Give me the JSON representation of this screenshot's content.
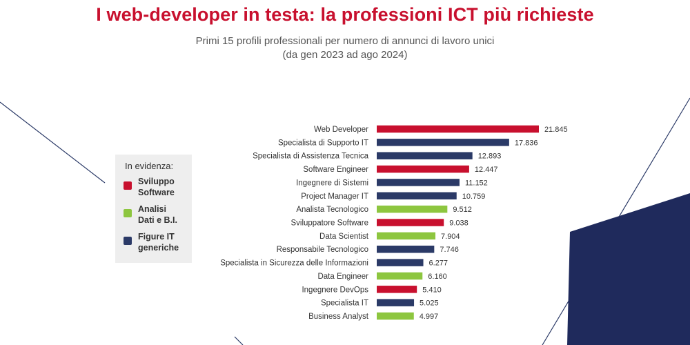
{
  "title": "I web-developer in testa: la professioni ICT più richieste",
  "subtitle_line1": "Primi 15 profili professionali per numero di annunci di lavoro unici",
  "subtitle_line2": "(da gen 2023 ad ago 2024)",
  "legend": {
    "title": "In evidenza:",
    "items": [
      {
        "label": "Sviluppo\nSoftware",
        "color": "#c8102e"
      },
      {
        "label": "Analisi\nDati e B.I.",
        "color": "#8dc63f"
      },
      {
        "label": "Figure IT\ngeneriche",
        "color": "#2b3a67"
      }
    ]
  },
  "chart_data": {
    "type": "bar",
    "orientation": "horizontal",
    "categories": [
      "Web Developer",
      "Specialista di Supporto IT",
      "Specialista di Assistenza Tecnica",
      "Software Engineer",
      "Ingegnere di Sistemi",
      "Project Manager IT",
      "Analista Tecnologico",
      "Sviluppatore Software",
      "Data Scientist",
      "Responsabile Tecnologico",
      "Specialista in Sicurezza delle Informazioni",
      "Data Engineer",
      "Ingegnere DevOps",
      "Specialista IT",
      "Business Analyst"
    ],
    "values": [
      21845,
      17836,
      12893,
      12447,
      11152,
      10759,
      9512,
      9038,
      7904,
      7746,
      6277,
      6160,
      5410,
      5025,
      4997
    ],
    "value_labels": [
      "21.845",
      "17.836",
      "12.893",
      "12.447",
      "11.152",
      "10.759",
      "9.512",
      "9.038",
      "7.904",
      "7.746",
      "6.277",
      "6.160",
      "5.410",
      "5.025",
      "4.997"
    ],
    "groups": [
      "Sviluppo Software",
      "Figure IT generiche",
      "Figure IT generiche",
      "Sviluppo Software",
      "Figure IT generiche",
      "Figure IT generiche",
      "Analisi Dati e B.I.",
      "Sviluppo Software",
      "Analisi Dati e B.I.",
      "Figure IT generiche",
      "Figure IT generiche",
      "Analisi Dati e B.I.",
      "Sviluppo Software",
      "Figure IT generiche",
      "Analisi Dati e B.I."
    ],
    "group_colors": {
      "Sviluppo Software": "#c8102e",
      "Analisi Dati e B.I.": "#8dc63f",
      "Figure IT generiche": "#2b3a67"
    },
    "xlim": [
      0,
      21845
    ],
    "grid": false,
    "legend_position": "left"
  }
}
